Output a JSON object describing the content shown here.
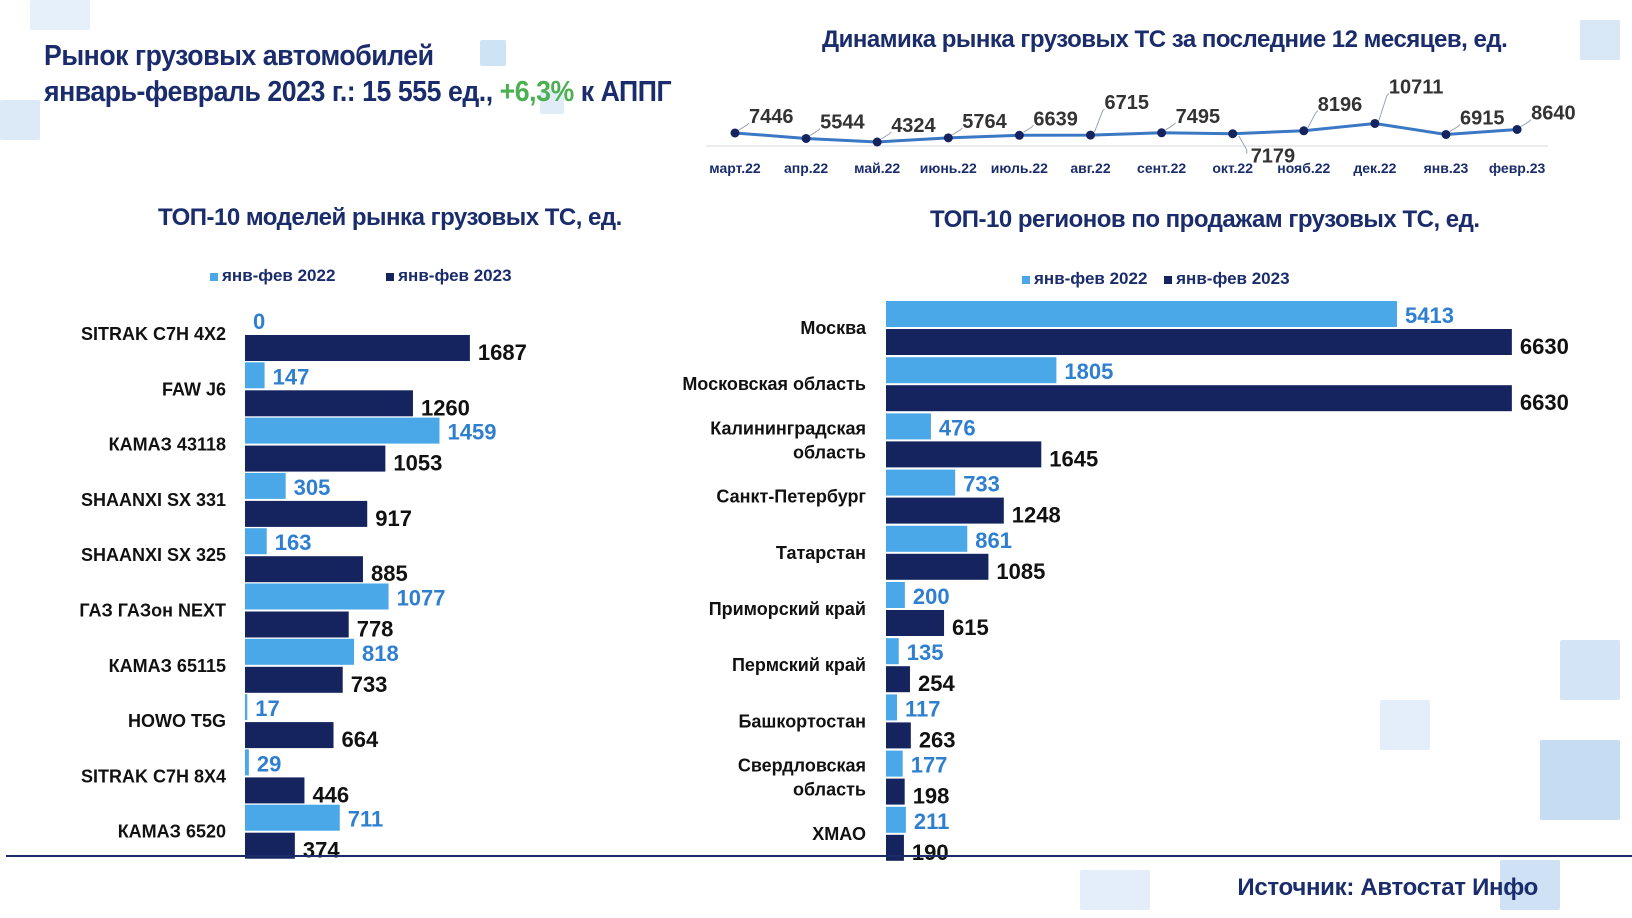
{
  "title": {
    "line1": "Рынок грузовых автомобилей",
    "line2_prefix": "январь-февраль 2023 г.: 15 555 ед., ",
    "line2_accent": "+6,3%",
    "line2_suffix": " к АППГ"
  },
  "colors": {
    "navy": "#1a2c6b",
    "dark_bar": "#15245e",
    "light_bar": "#4aa8e8",
    "line": "#3b78c4",
    "accent_green": "#4caf50",
    "light_label": "#2f7fd0"
  },
  "source": "Источник: Автостат Инфо",
  "chart_data": [
    {
      "type": "line",
      "title": "Динамика рынка грузовых ТС за последние 12 месяцев, ед.",
      "categories": [
        "март.22",
        "апр.22",
        "май.22",
        "июнь.22",
        "июль.22",
        "авг.22",
        "сент.22",
        "окт.22",
        "нояб.22",
        "дек.22",
        "янв.23",
        "февр.23"
      ],
      "values": [
        7446,
        5544,
        4324,
        5764,
        6639,
        6715,
        7495,
        7179,
        8196,
        10711,
        6915,
        8640
      ],
      "labels": [
        "7446",
        "5544",
        "4324",
        "5764",
        "6639",
        "6715",
        "7495",
        "7179",
        "8196",
        "10711",
        "6915",
        "8640"
      ],
      "grid": false
    },
    {
      "type": "bar",
      "orientation": "horizontal",
      "title": "ТОП-10 моделей рынка грузовых ТС, ед.",
      "legend_position": "top",
      "categories": [
        "SITRAK C7H 4X2",
        "FAW J6",
        "КАМАЗ 43118",
        "SHAANXI SX 331",
        "SHAANXI SX 325",
        "ГАЗ ГАЗон NEXT",
        "КАМАЗ 65115",
        "HOWO T5G",
        "SITRAK C7H 8X4",
        "КАМАЗ 6520"
      ],
      "series": [
        {
          "name": "янв-фев 2022",
          "values": [
            0,
            147,
            1459,
            305,
            163,
            1077,
            818,
            17,
            29,
            711
          ]
        },
        {
          "name": "янв-фев 2023",
          "values": [
            1687,
            1260,
            1053,
            917,
            885,
            778,
            733,
            664,
            446,
            374
          ]
        }
      ]
    },
    {
      "type": "bar",
      "orientation": "horizontal",
      "title": "ТОП-10 регионов по продажам грузовых ТС, ед.",
      "legend_position": "top",
      "categories": [
        [
          "Москва"
        ],
        [
          "Московская область"
        ],
        [
          "Калининградская",
          "область"
        ],
        [
          "Санкт-Петербург"
        ],
        [
          "Татарстан"
        ],
        [
          "Приморский край"
        ],
        [
          "Пермский край"
        ],
        [
          "Башкортостан"
        ],
        [
          "Свердловская",
          "область"
        ],
        [
          "ХМАО"
        ]
      ],
      "series": [
        {
          "name": "янв-фев 2022",
          "values": [
            5413,
            1805,
            476,
            733,
            861,
            200,
            135,
            117,
            177,
            211
          ]
        },
        {
          "name": "янв-фев 2023",
          "values": [
            6630,
            6630,
            1645,
            1248,
            1085,
            615,
            254,
            263,
            198,
            190
          ]
        }
      ]
    }
  ]
}
